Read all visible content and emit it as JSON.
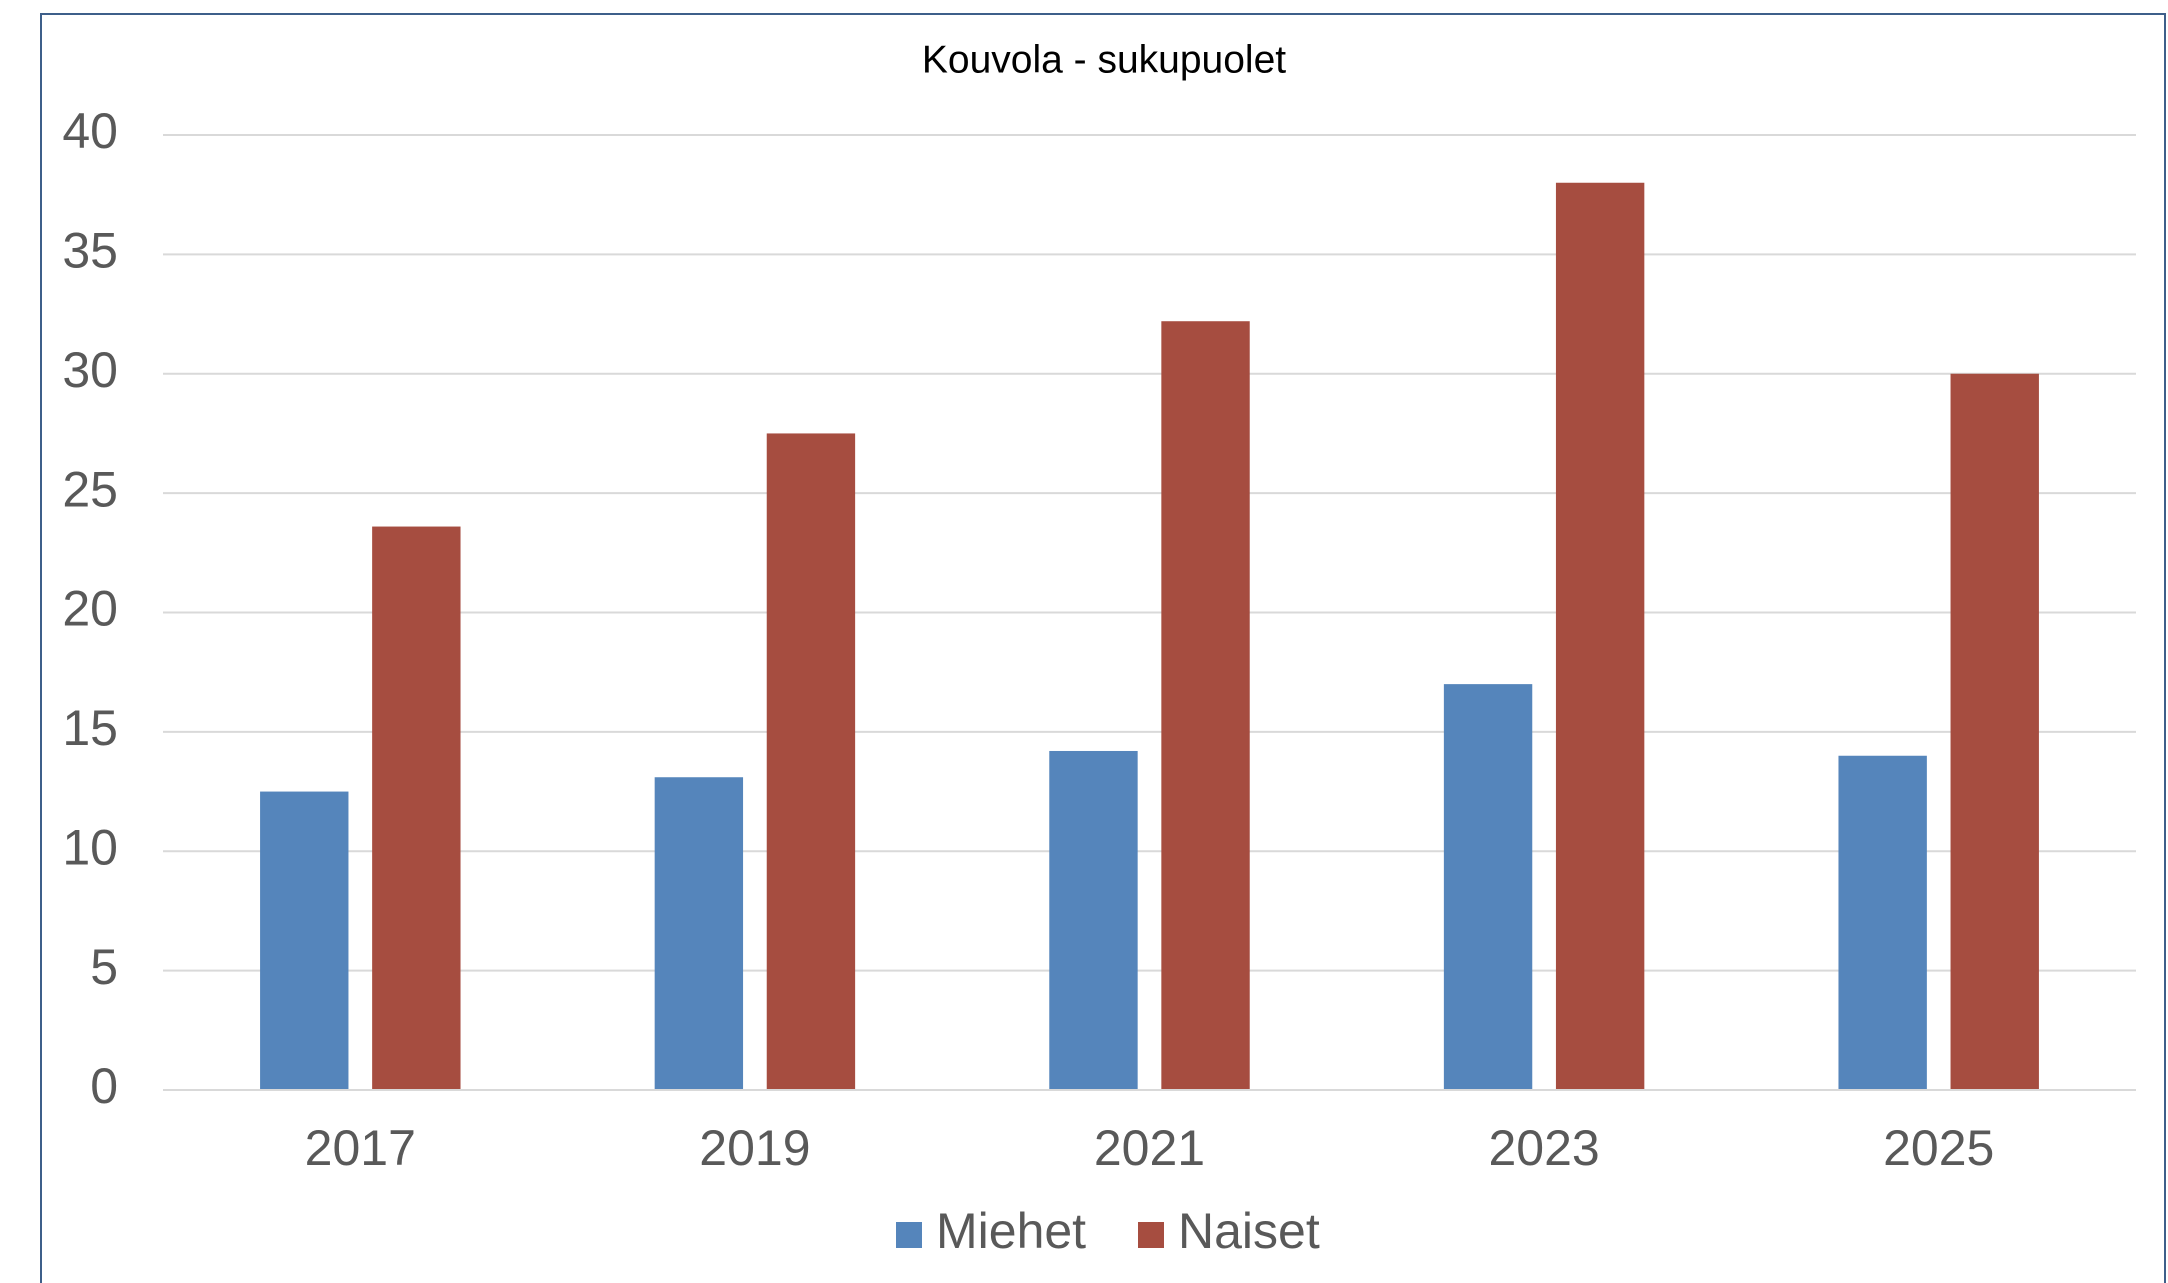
{
  "chart_data": {
    "type": "bar",
    "title": "Kouvola - sukupuolet",
    "categories": [
      "2017",
      "2019",
      "2021",
      "2023",
      "2025"
    ],
    "series": [
      {
        "name": "Miehet",
        "color": "#5585bb",
        "values": [
          12.5,
          13.1,
          14.2,
          17,
          14
        ]
      },
      {
        "name": "Naiset",
        "color": "#a64d40",
        "values": [
          23.6,
          27.5,
          32.2,
          38,
          30
        ]
      }
    ],
    "ylim": [
      0,
      40
    ],
    "yticks": [
      0,
      5,
      10,
      15,
      20,
      25,
      30,
      35,
      40
    ],
    "grid": true,
    "legend": "bottom"
  }
}
